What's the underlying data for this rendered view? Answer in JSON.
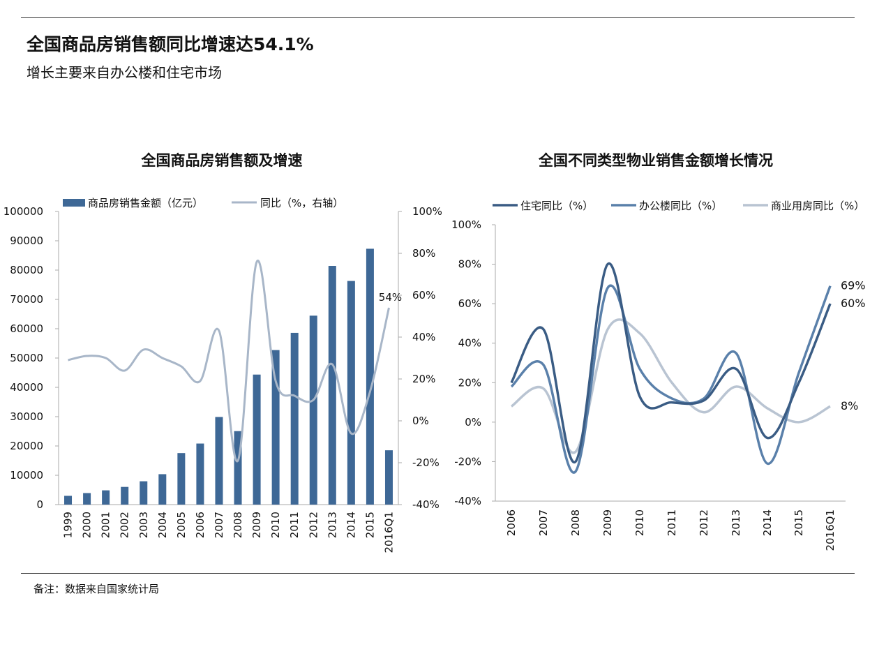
{
  "page": {
    "title": "全国商品房销售额同比增速达54.1%",
    "subtitle": "增长主要来自办公楼和住宅市场",
    "footnote": "备注：数据来自国家统计局"
  },
  "colors": {
    "bar": "#3e6896",
    "yoy_line": "#a8b6c8",
    "residential": "#3a5c84",
    "office": "#5a80aa",
    "commercial": "#b9c4d2",
    "axis": "#aaaaaa"
  },
  "chart_data": [
    {
      "type": "bar",
      "title": "全国商品房销售额及增速",
      "categories": [
        "1999",
        "2000",
        "2001",
        "2002",
        "2003",
        "2004",
        "2005",
        "2006",
        "2007",
        "2008",
        "2009",
        "2010",
        "2011",
        "2012",
        "2013",
        "2014",
        "2015",
        "2016Q1"
      ],
      "series": [
        {
          "name": "商品房销售金额（亿元）",
          "type": "bar",
          "axis": "left",
          "values": [
            2988,
            3935,
            4863,
            6032,
            7956,
            10376,
            17576,
            20826,
            29889,
            25068,
            44355,
            52721,
            58589,
            64456,
            81428,
            76292,
            87281,
            18530
          ]
        },
        {
          "name": "同比（%，右轴）",
          "type": "line",
          "axis": "right",
          "values": [
            29,
            31,
            30,
            24,
            34,
            30,
            26,
            19,
            43,
            -19,
            76,
            19,
            12,
            10,
            27,
            -6,
            14,
            54
          ]
        }
      ],
      "ylim_left": [
        0,
        100000
      ],
      "yticks_left": [
        0,
        10000,
        20000,
        30000,
        40000,
        50000,
        60000,
        70000,
        80000,
        90000,
        100000
      ],
      "ylim_right": [
        -40,
        100
      ],
      "yticks_right": [
        "-40%",
        "-20%",
        "0%",
        "20%",
        "40%",
        "60%",
        "80%",
        "100%"
      ],
      "yticks_right_values": [
        -40,
        -20,
        0,
        20,
        40,
        60,
        80,
        100
      ],
      "annotations": [
        {
          "category": "2016Q1",
          "text": "54%"
        }
      ],
      "legend_position": "top",
      "grid": false
    },
    {
      "type": "line",
      "title": "全国不同类型物业销售金额增长情况",
      "categories": [
        "2006",
        "2007",
        "2008",
        "2009",
        "2010",
        "2011",
        "2012",
        "2013",
        "2014",
        "2015",
        "2016Q1"
      ],
      "series": [
        {
          "name": "住宅同比（%）",
          "values": [
            20,
            47,
            -20,
            80,
            13,
            10,
            11,
            27,
            -8,
            20,
            60
          ]
        },
        {
          "name": "办公楼同比（%）",
          "values": [
            18,
            29,
            -25,
            68,
            27,
            12,
            12,
            35,
            -21,
            25,
            69
          ]
        },
        {
          "name": "商业用房同比（%）",
          "values": [
            8,
            17,
            -15,
            47,
            45,
            20,
            5,
            18,
            7,
            0,
            8
          ]
        }
      ],
      "ylim": [
        -40,
        100
      ],
      "yticks": [
        "-40%",
        "-20%",
        "0%",
        "20%",
        "40%",
        "60%",
        "80%",
        "100%"
      ],
      "ytick_values": [
        -40,
        -20,
        0,
        20,
        40,
        60,
        80,
        100
      ],
      "end_labels": [
        "60%",
        "69%",
        "8%"
      ],
      "legend_position": "top",
      "grid": false
    }
  ]
}
